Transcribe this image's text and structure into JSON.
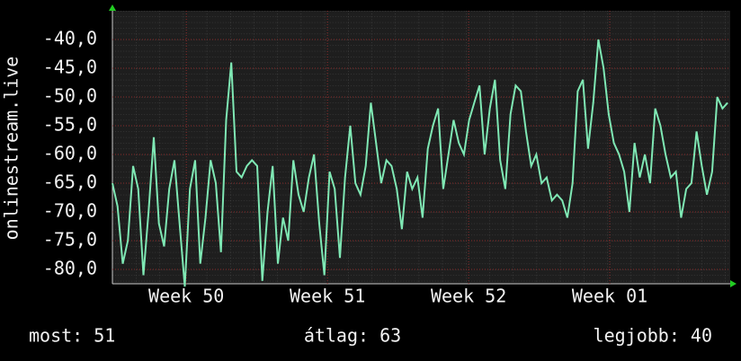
{
  "chart_data": {
    "type": "line",
    "y_label": "onlinestream.live",
    "x": [
      0,
      1,
      2,
      3,
      4,
      5,
      6,
      7,
      8,
      9,
      10,
      11,
      12,
      13,
      14,
      15,
      16,
      17,
      18,
      19,
      20,
      21,
      22,
      23,
      24,
      25,
      26,
      27,
      28,
      29,
      30,
      31,
      32,
      33,
      34,
      35,
      36,
      37,
      38,
      39,
      40,
      41,
      42,
      43,
      44,
      45,
      46,
      47,
      48,
      49,
      50,
      51,
      52,
      53,
      54,
      55,
      56,
      57,
      58,
      59,
      60,
      61,
      62,
      63,
      64,
      65,
      66,
      67,
      68,
      69,
      70,
      71,
      72,
      73,
      74,
      75,
      76,
      77,
      78,
      79,
      80,
      81,
      82,
      83,
      84,
      85,
      86,
      87,
      88,
      89,
      90,
      91,
      92,
      93,
      94,
      95,
      96,
      97,
      98,
      99,
      100,
      101,
      102,
      103,
      104,
      105,
      106,
      107,
      108,
      109,
      110,
      111,
      112,
      113,
      114,
      115,
      116,
      117,
      118,
      119
    ],
    "series": [
      {
        "color": "#7fe8b4",
        "values": [
          -65,
          -69,
          -79,
          -75,
          -62,
          -66,
          -81,
          -70,
          -57,
          -72,
          -76,
          -66,
          -61,
          -72,
          -83,
          -66,
          -61,
          -79,
          -71,
          -61,
          -65,
          -77,
          -54,
          -44,
          -63,
          -64,
          -62,
          -61,
          -62,
          -82,
          -70,
          -62,
          -79,
          -71,
          -75,
          -61,
          -67,
          -70,
          -64,
          -60,
          -72,
          -81,
          -63,
          -66,
          -78,
          -64,
          -55,
          -65,
          -67,
          -62,
          -51,
          -58,
          -65,
          -61,
          -62,
          -66,
          -73,
          -63,
          -66,
          -64,
          -71,
          -59,
          -55,
          -52,
          -66,
          -60,
          -54,
          -58,
          -60,
          -54,
          -51,
          -48,
          -60,
          -52,
          -47,
          -61,
          -66,
          -53,
          -48,
          -49,
          -56,
          -62,
          -60,
          -65,
          -64,
          -68,
          -67,
          -68,
          -71,
          -65,
          -49,
          -47,
          -59,
          -51,
          -40,
          -45,
          -53,
          -58,
          -60,
          -63,
          -70,
          -58,
          -64,
          -60,
          -65,
          -52,
          -55,
          -60,
          -64,
          -63,
          -71,
          -66,
          -65,
          -56,
          -62,
          -67,
          -63,
          -50,
          -52,
          -51
        ]
      }
    ],
    "xlim": [
      0,
      119.5
    ],
    "xticks": [
      {
        "value": 14.3,
        "label": "Week 50"
      },
      {
        "value": 41.6,
        "label": "Week 51"
      },
      {
        "value": 68.9,
        "label": "Week 52"
      },
      {
        "value": 96.2,
        "label": "Week 01"
      }
    ],
    "ylim": [
      -82.5,
      -35
    ],
    "yticks": [
      {
        "value": -80,
        "label": "-80,0"
      },
      {
        "value": -75,
        "label": "-75,0"
      },
      {
        "value": -70,
        "label": "-70,0"
      },
      {
        "value": -65,
        "label": "-65,0"
      },
      {
        "value": -60,
        "label": "-60,0"
      },
      {
        "value": -55,
        "label": "-55,0"
      },
      {
        "value": -50,
        "label": "-50,0"
      },
      {
        "value": -45,
        "label": "-45,0"
      },
      {
        "value": -40,
        "label": "-40,0"
      }
    ],
    "grid": true,
    "footer": {
      "current": "most: 51",
      "average": "átlag: 63",
      "maximum": "legjobb: 40"
    }
  }
}
